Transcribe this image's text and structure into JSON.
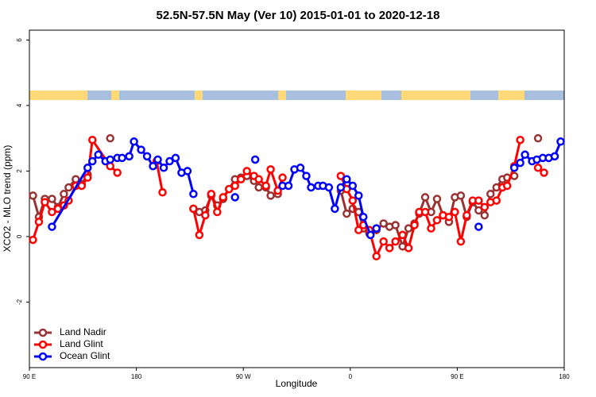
{
  "chart_data": {
    "type": "line",
    "title": "52.5N-57.5N May (Ver 10)   2015-01-01 to 2020-12-18",
    "x_label": "Longitude",
    "y_label": "XCO2 - MLO trend (ppm)",
    "xlim": [
      90,
      540
    ],
    "xticks": [
      {
        "value": 90,
        "label": "90 E"
      },
      180,
      {
        "value": 270,
        "label": "90 W"
      },
      {
        "value": 360,
        "label": "0"
      },
      {
        "value": 450,
        "label": "90 E"
      },
      {
        "value": 540,
        "label": "180"
      }
    ],
    "ylim": [
      -4,
      6.3
    ],
    "yticks": [
      -2,
      0,
      2,
      4,
      6
    ],
    "legend": "bottom-left",
    "series": [
      {
        "name": "Land Nadir",
        "color": "#993333",
        "x": [
          93,
          98,
          103,
          109,
          114,
          119,
          123,
          129,
          134,
          139,
          null,
          158,
          null,
          228,
          233,
          238,
          243,
          248,
          253,
          258,
          263,
          268,
          273,
          279,
          283,
          289,
          293,
          299,
          null,
          352,
          357,
          362,
          367,
          371,
          376,
          382,
          388,
          393,
          398,
          404,
          409,
          414,
          418,
          423,
          428,
          433,
          438,
          443,
          448,
          453,
          458,
          463,
          468,
          473,
          478,
          483,
          488,
          492,
          498,
          null,
          518
        ],
        "values": [
          1.25,
          0.6,
          1.15,
          1.15,
          0.9,
          1.3,
          1.5,
          1.75,
          1.6,
          1.9,
          null,
          3.0,
          null,
          0.85,
          0.75,
          0.8,
          1.25,
          0.95,
          1.15,
          1.45,
          1.75,
          1.8,
          1.85,
          1.7,
          1.5,
          1.5,
          1.25,
          1.3,
          null,
          1.4,
          0.7,
          0.85,
          0.75,
          0.25,
          0.1,
          0.2,
          0.4,
          0.3,
          0.35,
          -0.3,
          0.25,
          0.4,
          0.7,
          1.2,
          0.75,
          1.15,
          0.65,
          0.45,
          1.2,
          1.25,
          0.6,
          1.05,
          0.8,
          0.65,
          1.3,
          1.5,
          1.75,
          1.8,
          1.85,
          null,
          3.0
        ]
      },
      {
        "name": "Land Glint",
        "color": "#ff0000",
        "x": [
          93,
          98,
          103,
          109,
          114,
          119,
          123,
          129,
          134,
          139,
          143,
          158,
          164,
          null,
          197,
          202,
          null,
          228,
          233,
          238,
          243,
          248,
          253,
          258,
          263,
          268,
          273,
          279,
          283,
          289,
          293,
          299,
          303,
          null,
          352,
          357,
          362,
          367,
          371,
          376,
          382,
          388,
          393,
          398,
          404,
          409,
          414,
          418,
          423,
          428,
          433,
          438,
          443,
          448,
          453,
          458,
          463,
          468,
          473,
          478,
          483,
          488,
          492,
          498,
          503,
          null,
          518,
          523
        ],
        "values": [
          -0.1,
          0.45,
          1.05,
          0.75,
          0.85,
          0.95,
          1.1,
          1.55,
          1.55,
          1.8,
          2.95,
          2.15,
          1.95,
          null,
          2.3,
          1.35,
          null,
          0.85,
          0.05,
          0.65,
          1.3,
          0.75,
          1.2,
          1.45,
          1.55,
          1.75,
          2.0,
          1.85,
          1.75,
          1.55,
          2.05,
          1.4,
          1.8,
          null,
          1.85,
          1.45,
          1.1,
          0.2,
          0.35,
          0.2,
          -0.6,
          -0.15,
          -0.35,
          -0.15,
          0.05,
          -0.35,
          0.35,
          0.75,
          0.75,
          0.25,
          0.5,
          0.65,
          0.6,
          0.75,
          -0.15,
          0.65,
          1.1,
          1.1,
          0.9,
          1.05,
          1.1,
          1.5,
          1.55,
          2.15,
          2.95,
          null,
          2.1,
          1.95
        ]
      },
      {
        "name": "Ocean Glint",
        "color": "#0000ff",
        "x": [
          109,
          139,
          143,
          148,
          154,
          158,
          164,
          168,
          174,
          178,
          184,
          189,
          194,
          198,
          203,
          208,
          213,
          218,
          223,
          228,
          null,
          263,
          null,
          280,
          null,
          303,
          308,
          313,
          318,
          323,
          327,
          333,
          337,
          342,
          347,
          352,
          357,
          362,
          367,
          371,
          377,
          382,
          null,
          468,
          null,
          498,
          503,
          507,
          513,
          517,
          522,
          527,
          532,
          537
        ],
        "values": [
          0.3,
          2.1,
          2.3,
          2.5,
          2.3,
          2.35,
          2.4,
          2.4,
          2.45,
          2.9,
          2.65,
          2.45,
          2.15,
          2.35,
          2.1,
          2.3,
          2.4,
          1.95,
          2.0,
          1.3,
          null,
          1.2,
          null,
          2.35,
          null,
          1.55,
          1.55,
          2.05,
          2.1,
          1.85,
          1.5,
          1.55,
          1.55,
          1.5,
          0.85,
          1.5,
          1.75,
          1.55,
          1.25,
          0.6,
          0.05,
          0.25,
          null,
          0.3,
          null,
          2.1,
          2.25,
          2.5,
          2.3,
          2.35,
          2.4,
          2.4,
          2.45,
          2.9
        ]
      }
    ]
  }
}
